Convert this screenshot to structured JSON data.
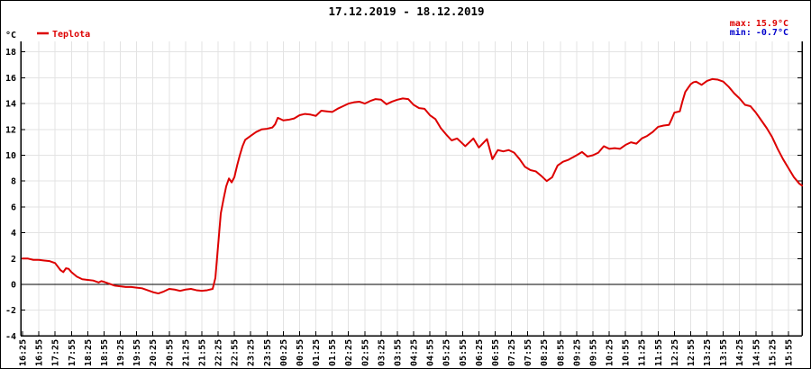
{
  "chart_data": {
    "type": "line",
    "title": "17.12.2019 - 18.12.2019",
    "ylabel": "°C",
    "ylim": [
      -4,
      18.8
    ],
    "ytick_step": 2,
    "yticks": [
      18,
      16,
      14,
      12,
      10,
      8,
      6,
      4,
      2,
      0,
      -2,
      -4
    ],
    "xticks": [
      "16:25",
      "16:55",
      "17:25",
      "17:55",
      "18:25",
      "18:55",
      "19:25",
      "19:55",
      "20:25",
      "20:55",
      "21:25",
      "21:55",
      "22:25",
      "22:55",
      "23:25",
      "23:55",
      "00:25",
      "00:55",
      "01:25",
      "01:55",
      "02:25",
      "02:55",
      "03:25",
      "03:55",
      "04:25",
      "04:55",
      "05:25",
      "05:55",
      "06:25",
      "06:55",
      "07:25",
      "07:55",
      "08:25",
      "08:55",
      "09:25",
      "09:55",
      "10:25",
      "10:55",
      "11:25",
      "11:55",
      "12:25",
      "12:55",
      "13:25",
      "13:55",
      "14:25",
      "14:55",
      "15:25",
      "15:55"
    ],
    "x_tick_interval_minutes": 30,
    "x_start_time": "16:25",
    "grid": true,
    "zero_line": true,
    "legend_position": "top-left",
    "annotations": {
      "max_label": "max:",
      "max_value": "15.9°C",
      "min_label": "min:",
      "min_value": "-0.7°C",
      "max_color": "#dd0000",
      "min_color": "#0000cc"
    },
    "series": [
      {
        "name": "Teplota",
        "color": "#dd0000",
        "points": [
          [
            "16:25",
            2.0
          ],
          [
            "16:35",
            2.0
          ],
          [
            "16:45",
            1.9
          ],
          [
            "16:55",
            1.9
          ],
          [
            "17:05",
            1.85
          ],
          [
            "17:15",
            1.8
          ],
          [
            "17:25",
            1.65
          ],
          [
            "17:35",
            1.1
          ],
          [
            "17:40",
            0.95
          ],
          [
            "17:45",
            1.25
          ],
          [
            "17:50",
            1.2
          ],
          [
            "17:55",
            0.95
          ],
          [
            "18:05",
            0.6
          ],
          [
            "18:15",
            0.4
          ],
          [
            "18:25",
            0.35
          ],
          [
            "18:35",
            0.3
          ],
          [
            "18:45",
            0.15
          ],
          [
            "18:50",
            0.25
          ],
          [
            "18:55",
            0.2
          ],
          [
            "19:05",
            0.05
          ],
          [
            "19:15",
            -0.1
          ],
          [
            "19:25",
            -0.15
          ],
          [
            "19:35",
            -0.2
          ],
          [
            "19:45",
            -0.2
          ],
          [
            "19:55",
            -0.25
          ],
          [
            "20:05",
            -0.3
          ],
          [
            "20:15",
            -0.45
          ],
          [
            "20:25",
            -0.6
          ],
          [
            "20:35",
            -0.7
          ],
          [
            "20:45",
            -0.55
          ],
          [
            "20:55",
            -0.35
          ],
          [
            "21:05",
            -0.4
          ],
          [
            "21:15",
            -0.5
          ],
          [
            "21:25",
            -0.4
          ],
          [
            "21:35",
            -0.35
          ],
          [
            "21:45",
            -0.45
          ],
          [
            "21:55",
            -0.5
          ],
          [
            "22:05",
            -0.45
          ],
          [
            "22:15",
            -0.35
          ],
          [
            "22:20",
            0.5
          ],
          [
            "22:25",
            3.0
          ],
          [
            "22:30",
            5.5
          ],
          [
            "22:35",
            6.6
          ],
          [
            "22:40",
            7.6
          ],
          [
            "22:45",
            8.2
          ],
          [
            "22:50",
            7.9
          ],
          [
            "22:55",
            8.3
          ],
          [
            "23:00",
            9.2
          ],
          [
            "23:05",
            10.0
          ],
          [
            "23:10",
            10.7
          ],
          [
            "23:15",
            11.2
          ],
          [
            "23:25",
            11.5
          ],
          [
            "23:35",
            11.8
          ],
          [
            "23:45",
            12.0
          ],
          [
            "23:55",
            12.05
          ],
          [
            "00:05",
            12.15
          ],
          [
            "00:10",
            12.4
          ],
          [
            "00:15",
            12.9
          ],
          [
            "00:25",
            12.7
          ],
          [
            "00:35",
            12.75
          ],
          [
            "00:45",
            12.85
          ],
          [
            "00:55",
            13.1
          ],
          [
            "01:05",
            13.2
          ],
          [
            "01:15",
            13.15
          ],
          [
            "01:25",
            13.05
          ],
          [
            "01:35",
            13.45
          ],
          [
            "01:45",
            13.4
          ],
          [
            "01:55",
            13.35
          ],
          [
            "02:05",
            13.6
          ],
          [
            "02:15",
            13.8
          ],
          [
            "02:25",
            14.0
          ],
          [
            "02:35",
            14.1
          ],
          [
            "02:45",
            14.15
          ],
          [
            "02:55",
            14.0
          ],
          [
            "03:05",
            14.2
          ],
          [
            "03:15",
            14.35
          ],
          [
            "03:25",
            14.3
          ],
          [
            "03:35",
            13.95
          ],
          [
            "03:45",
            14.15
          ],
          [
            "03:55",
            14.3
          ],
          [
            "04:05",
            14.4
          ],
          [
            "04:15",
            14.35
          ],
          [
            "04:25",
            13.9
          ],
          [
            "04:35",
            13.65
          ],
          [
            "04:45",
            13.6
          ],
          [
            "04:55",
            13.1
          ],
          [
            "05:05",
            12.8
          ],
          [
            "05:15",
            12.1
          ],
          [
            "05:25",
            11.6
          ],
          [
            "05:35",
            11.15
          ],
          [
            "05:45",
            11.3
          ],
          [
            "06:00",
            10.7
          ],
          [
            "06:15",
            11.3
          ],
          [
            "06:25",
            10.6
          ],
          [
            "06:40",
            11.25
          ],
          [
            "06:50",
            9.7
          ],
          [
            "07:00",
            10.4
          ],
          [
            "07:10",
            10.3
          ],
          [
            "07:20",
            10.4
          ],
          [
            "07:30",
            10.2
          ],
          [
            "07:40",
            9.7
          ],
          [
            "07:50",
            9.1
          ],
          [
            "08:00",
            8.85
          ],
          [
            "08:10",
            8.75
          ],
          [
            "08:20",
            8.4
          ],
          [
            "08:30",
            8.0
          ],
          [
            "08:40",
            8.3
          ],
          [
            "08:50",
            9.2
          ],
          [
            "09:00",
            9.5
          ],
          [
            "09:10",
            9.65
          ],
          [
            "09:25",
            10.0
          ],
          [
            "09:35",
            10.25
          ],
          [
            "09:45",
            9.9
          ],
          [
            "09:55",
            10.0
          ],
          [
            "10:05",
            10.2
          ],
          [
            "10:15",
            10.7
          ],
          [
            "10:25",
            10.5
          ],
          [
            "10:35",
            10.55
          ],
          [
            "10:45",
            10.5
          ],
          [
            "10:55",
            10.8
          ],
          [
            "11:05",
            11.0
          ],
          [
            "11:15",
            10.9
          ],
          [
            "11:25",
            11.3
          ],
          [
            "11:35",
            11.5
          ],
          [
            "11:45",
            11.8
          ],
          [
            "11:55",
            12.2
          ],
          [
            "12:05",
            12.3
          ],
          [
            "12:15",
            12.35
          ],
          [
            "12:20",
            12.8
          ],
          [
            "12:25",
            13.3
          ],
          [
            "12:35",
            13.4
          ],
          [
            "12:40",
            14.2
          ],
          [
            "12:45",
            14.9
          ],
          [
            "12:50",
            15.2
          ],
          [
            "12:55",
            15.5
          ],
          [
            "13:00",
            15.65
          ],
          [
            "13:05",
            15.7
          ],
          [
            "13:15",
            15.45
          ],
          [
            "13:25",
            15.75
          ],
          [
            "13:35",
            15.9
          ],
          [
            "13:45",
            15.85
          ],
          [
            "13:55",
            15.7
          ],
          [
            "14:05",
            15.3
          ],
          [
            "14:15",
            14.8
          ],
          [
            "14:25",
            14.4
          ],
          [
            "14:35",
            13.9
          ],
          [
            "14:45",
            13.8
          ],
          [
            "14:55",
            13.3
          ],
          [
            "15:05",
            12.7
          ],
          [
            "15:15",
            12.1
          ],
          [
            "15:25",
            11.4
          ],
          [
            "15:35",
            10.5
          ],
          [
            "15:45",
            9.7
          ],
          [
            "15:55",
            9.0
          ],
          [
            "16:05",
            8.3
          ],
          [
            "16:15",
            7.8
          ],
          [
            "16:20",
            7.65
          ]
        ]
      }
    ]
  }
}
